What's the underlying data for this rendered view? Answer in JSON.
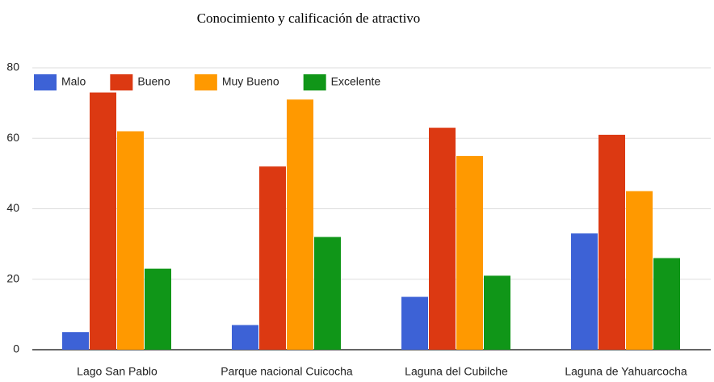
{
  "chart_data": {
    "type": "bar",
    "title": "Conocimiento y calificación de atractivo",
    "categories": [
      "Lago San Pablo",
      "Parque nacional Cuicocha",
      "Laguna del Cubilche",
      "Laguna de Yahuarcocha"
    ],
    "series": [
      {
        "name": "Malo",
        "color": "#3d62d6",
        "values": [
          5,
          7,
          15,
          33
        ]
      },
      {
        "name": "Bueno",
        "color": "#dc3912",
        "values": [
          73,
          52,
          63,
          61
        ]
      },
      {
        "name": "Muy Bueno",
        "color": "#ff9900",
        "values": [
          62,
          71,
          55,
          45
        ]
      },
      {
        "name": "Excelente",
        "color": "#109618",
        "values": [
          23,
          32,
          21,
          26
        ]
      }
    ],
    "ylim": [
      0,
      80
    ],
    "yticks": [
      0,
      20,
      40,
      60,
      80
    ],
    "grid": true,
    "legend": "top-left"
  }
}
